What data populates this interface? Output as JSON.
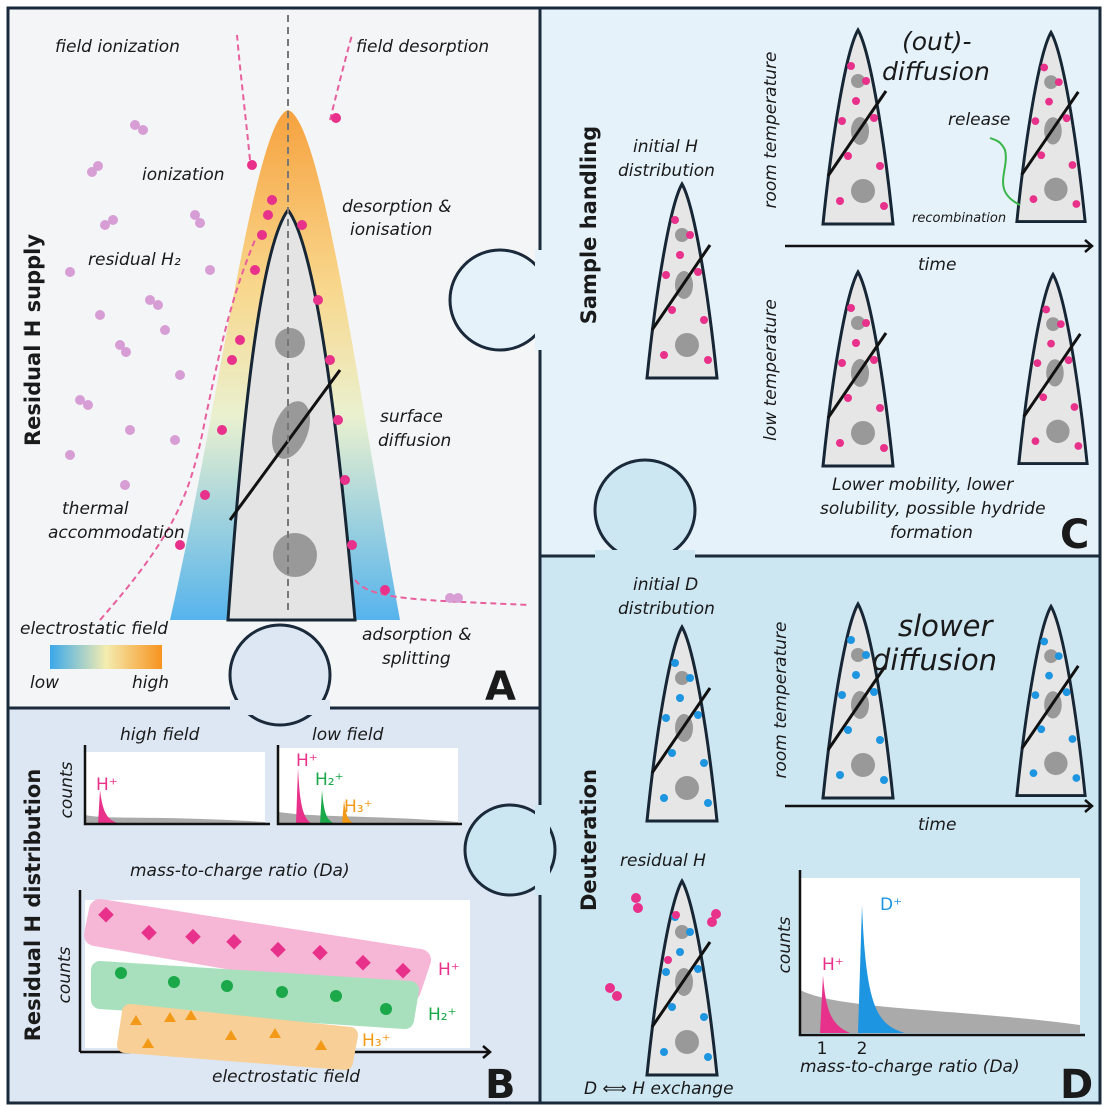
{
  "panel_a": {
    "title": "Residual H supply",
    "letter": "A",
    "field_ionization": "field ionization",
    "field_desorption": "field desorption",
    "ionization": "ionization",
    "desorption": [
      "desorption &",
      "ionisation"
    ],
    "residual_h2": "residual H₂",
    "surface_diffusion": [
      "surface",
      "diffusion"
    ],
    "thermal": [
      "thermal",
      "accommodation"
    ],
    "adsorption": [
      "adsorption &",
      "splitting"
    ],
    "colorbar": {
      "title": "electrostatic field",
      "low": "low",
      "high": "high"
    }
  },
  "panel_b": {
    "title": "Residual H distribution",
    "letter": "B",
    "high_field": "high field",
    "low_field": "low field",
    "counts_top": "counts",
    "xlabel_top": "mass-to-charge ratio (Da)",
    "ion_h": "H⁺",
    "ion_h_low": "H⁺",
    "ion_h2": "H₂⁺",
    "ion_h3": "H₃⁺",
    "counts_bottom": "counts",
    "xlabel_bottom": "electrostatic field",
    "series_h": "H⁺",
    "series_h2": "H₂⁺",
    "series_h3": "H₃⁺"
  },
  "panel_c": {
    "title": "Sample handling",
    "letter": "C",
    "initial": [
      "initial H",
      "distribution"
    ],
    "room_temperature": "room temperature",
    "low_temperature": "low temperature",
    "out_diffusion": [
      "(out)-",
      "diffusion"
    ],
    "release": "release",
    "recombination": "recombination",
    "time": "time",
    "lower": [
      "Lower mobility, lower",
      "solubility, possible hydride",
      "formation"
    ]
  },
  "panel_d": {
    "title": "Deuteration",
    "letter": "D",
    "initial": [
      "initial D",
      "distribution"
    ],
    "room_temperature": "room temperature",
    "slower": [
      "slower",
      "diffusion"
    ],
    "time": "time",
    "residual_h": "residual H",
    "exchange": "D ⟺ H exchange",
    "counts": "counts",
    "ion_h": "H⁺",
    "ion_d": "D⁺",
    "xticks": [
      1,
      2
    ],
    "xlabel": "mass-to-charge ratio (Da)"
  }
}
